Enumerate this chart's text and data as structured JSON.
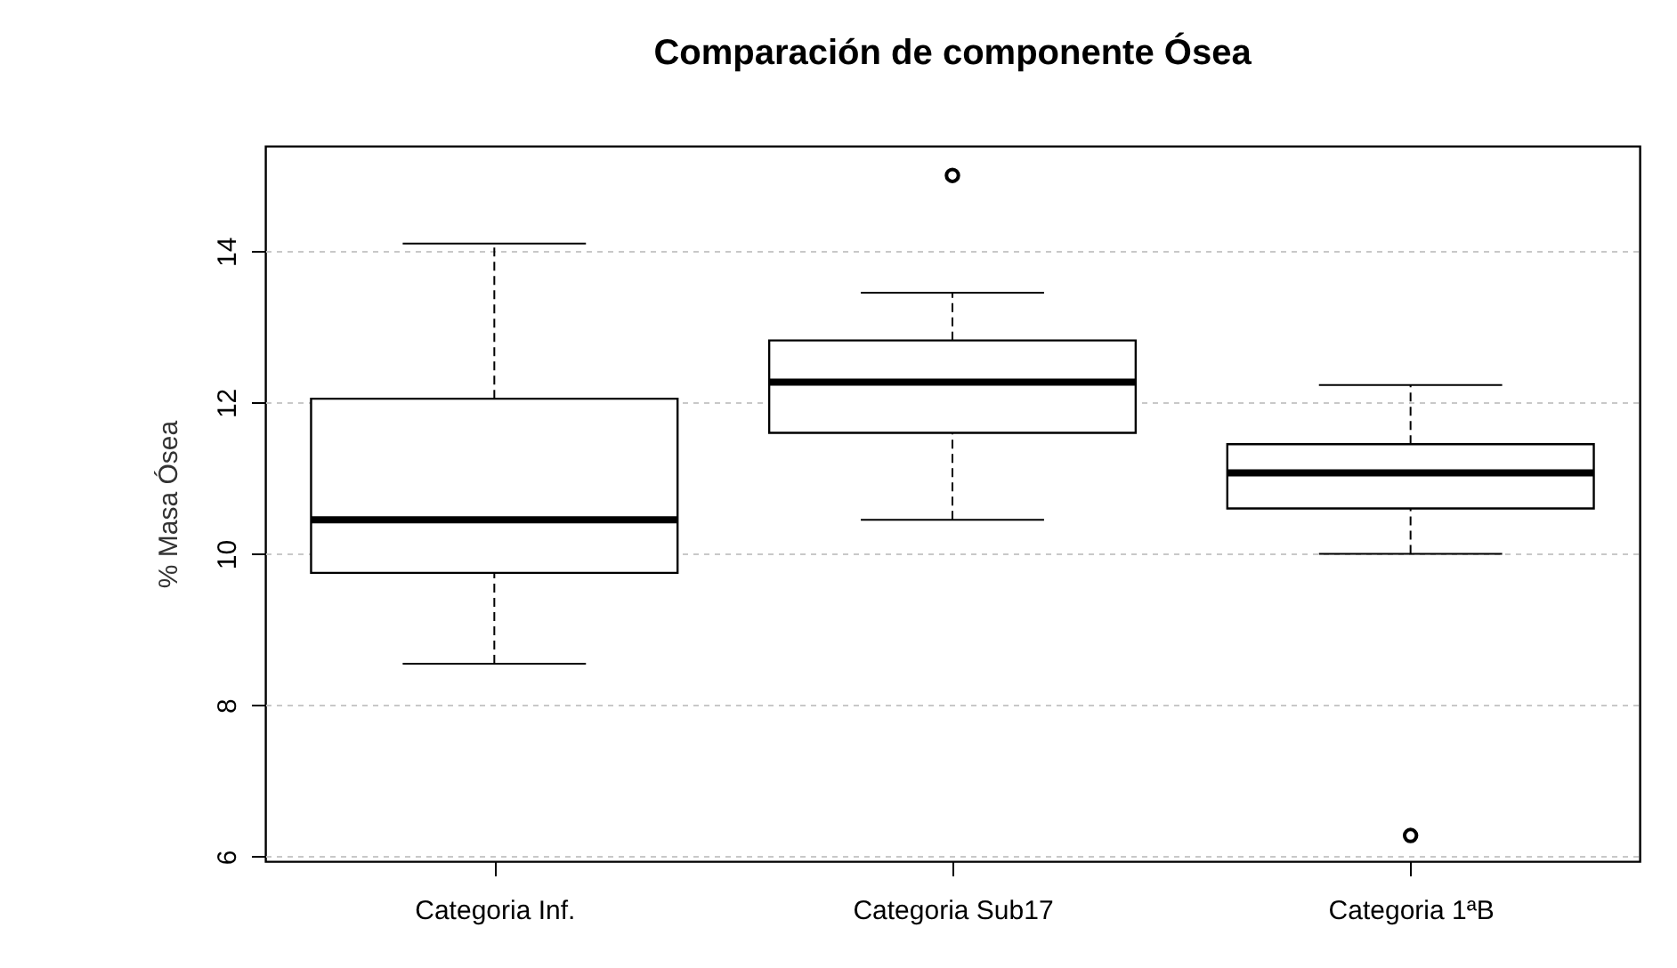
{
  "chart_data": {
    "type": "box",
    "title": "Comparación de componente Ósea",
    "ylabel": "% Masa Ósea",
    "categories": [
      "Categoria Inf.",
      "Categoria Sub17",
      "Categoria 1ªB"
    ],
    "boxes": [
      {
        "low": 8.55,
        "q1": 9.75,
        "median": 10.45,
        "q3": 12.05,
        "high": 14.1
      },
      {
        "low": 10.45,
        "q1": 11.6,
        "median": 12.27,
        "q3": 12.82,
        "high": 13.45,
        "outliers": [
          15.0
        ]
      },
      {
        "low": 10.0,
        "q1": 10.6,
        "median": 11.07,
        "q3": 11.45,
        "high": 12.23,
        "outliers": [
          6.28
        ]
      }
    ],
    "ylim": [
      5.94,
      15.39
    ],
    "yticks": [
      6,
      8,
      10,
      12,
      14
    ],
    "grid": "y"
  }
}
